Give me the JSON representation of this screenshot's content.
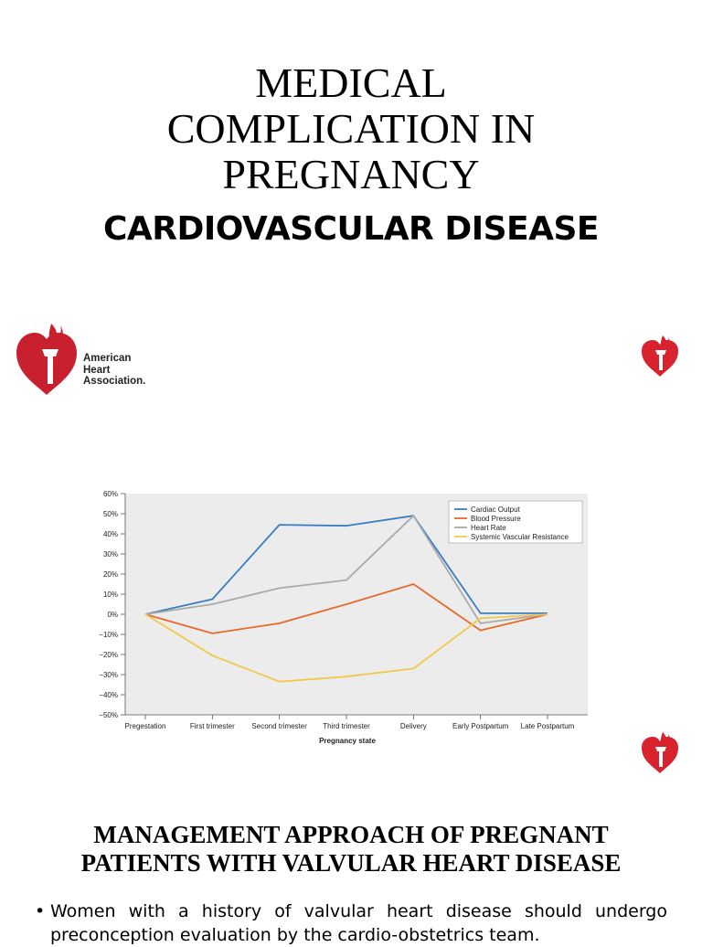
{
  "header": {
    "title": "MEDICAL\nCOMPLICATION IN\nPREGNANCY",
    "subtitle": "CARDIOVASCULAR DISEASE"
  },
  "logo": {
    "lines": [
      "American",
      "Heart",
      "Association."
    ]
  },
  "chart_data": {
    "type": "line",
    "xlabel": "Pregnancy state",
    "ylabel": "",
    "categories": [
      "Pregestation",
      "First trimester",
      "Second trimester",
      "Third trimester",
      "Delivery",
      "Early Postpartum",
      "Late Postpartum"
    ],
    "yticks": [
      "60%",
      "50%",
      "40%",
      "30%",
      "20%",
      "10%",
      "0%",
      "−10%",
      "−20%",
      "−30%",
      "−40%",
      "−50%"
    ],
    "ylim": [
      -50,
      60
    ],
    "legend_position": "top-right",
    "grid": false,
    "series": [
      {
        "name": "Cardiac Output",
        "color": "#3a7dc2",
        "values": [
          0,
          7.5,
          44.5,
          44,
          49,
          0.5,
          0.5
        ]
      },
      {
        "name": "Blood Pressure",
        "color": "#e8692b",
        "values": [
          0,
          -9.5,
          -4.5,
          5,
          15,
          -8,
          0
        ]
      },
      {
        "name": "Heart Rate",
        "color": "#aaaaaa",
        "values": [
          0,
          5,
          13,
          17,
          49,
          -4.5,
          0
        ]
      },
      {
        "name": "Systemic Vascular Resistance",
        "color": "#f1c94a",
        "values": [
          0,
          -20.5,
          -33.5,
          -31,
          -27,
          -2,
          0
        ]
      }
    ]
  },
  "management": {
    "title": "MANAGEMENT APPROACH OF PREGNANT\nPATIENTS WITH VALVULAR HEART DISEASE",
    "bullet_symbol": "•",
    "bullet": "Women with a history of valvular heart disease should undergo preconception evaluation by the cardio-obstetrics team."
  }
}
